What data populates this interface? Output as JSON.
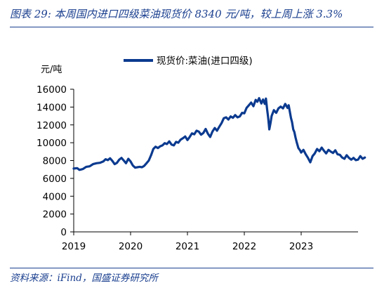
{
  "figure": {
    "title": "图表 29: 本周国内进口四级菜油现货价 8340 元/吨，较上周上涨 3.3%",
    "source": "资料来源：iFind，国盛证券研究所"
  },
  "chart_data": {
    "type": "line",
    "title": "",
    "ylabel": "元/吨",
    "xlabel": "",
    "ylim": [
      0,
      16000
    ],
    "yticks": [
      0,
      2000,
      4000,
      6000,
      8000,
      10000,
      12000,
      14000,
      16000
    ],
    "xlim": [
      2019.0,
      2024.0
    ],
    "xticks": [
      "2019",
      "2020",
      "2021",
      "2022",
      "2023"
    ],
    "legend_position": "top-center",
    "grid": false,
    "colors": {
      "line": "#0b3a8f",
      "axis": "#000000",
      "title": "#1a3f8f"
    },
    "series": [
      {
        "name": "现货价:菜油(进口四级)",
        "points": [
          [
            2019.0,
            7100
          ],
          [
            2019.06,
            7150
          ],
          [
            2019.1,
            6950
          ],
          [
            2019.16,
            7050
          ],
          [
            2019.22,
            7300
          ],
          [
            2019.28,
            7350
          ],
          [
            2019.34,
            7600
          ],
          [
            2019.4,
            7700
          ],
          [
            2019.46,
            7750
          ],
          [
            2019.52,
            7900
          ],
          [
            2019.56,
            8150
          ],
          [
            2019.6,
            8050
          ],
          [
            2019.64,
            8250
          ],
          [
            2019.68,
            7950
          ],
          [
            2019.72,
            7600
          ],
          [
            2019.76,
            7750
          ],
          [
            2019.8,
            8100
          ],
          [
            2019.84,
            8300
          ],
          [
            2019.88,
            8000
          ],
          [
            2019.92,
            7700
          ],
          [
            2019.96,
            8200
          ],
          [
            2020.0,
            7900
          ],
          [
            2020.04,
            7450
          ],
          [
            2020.08,
            7200
          ],
          [
            2020.12,
            7250
          ],
          [
            2020.16,
            7300
          ],
          [
            2020.2,
            7250
          ],
          [
            2020.24,
            7400
          ],
          [
            2020.28,
            7700
          ],
          [
            2020.32,
            8000
          ],
          [
            2020.36,
            8600
          ],
          [
            2020.4,
            9300
          ],
          [
            2020.44,
            9550
          ],
          [
            2020.48,
            9400
          ],
          [
            2020.52,
            9600
          ],
          [
            2020.56,
            9700
          ],
          [
            2020.6,
            9950
          ],
          [
            2020.64,
            9850
          ],
          [
            2020.68,
            10150
          ],
          [
            2020.72,
            9800
          ],
          [
            2020.76,
            9700
          ],
          [
            2020.8,
            10100
          ],
          [
            2020.84,
            10000
          ],
          [
            2020.88,
            10350
          ],
          [
            2020.92,
            10500
          ],
          [
            2020.96,
            10700
          ],
          [
            2021.0,
            10300
          ],
          [
            2021.04,
            10650
          ],
          [
            2021.08,
            11050
          ],
          [
            2021.12,
            10950
          ],
          [
            2021.16,
            11350
          ],
          [
            2021.2,
            11250
          ],
          [
            2021.24,
            10900
          ],
          [
            2021.28,
            11100
          ],
          [
            2021.32,
            11550
          ],
          [
            2021.36,
            11000
          ],
          [
            2021.4,
            10650
          ],
          [
            2021.44,
            11250
          ],
          [
            2021.48,
            11650
          ],
          [
            2021.52,
            11350
          ],
          [
            2021.56,
            11800
          ],
          [
            2021.6,
            12200
          ],
          [
            2021.64,
            12750
          ],
          [
            2021.68,
            12850
          ],
          [
            2021.72,
            12600
          ],
          [
            2021.76,
            12950
          ],
          [
            2021.8,
            12800
          ],
          [
            2021.84,
            13100
          ],
          [
            2021.88,
            12850
          ],
          [
            2021.92,
            12950
          ],
          [
            2021.96,
            13350
          ],
          [
            2022.0,
            13300
          ],
          [
            2022.04,
            13900
          ],
          [
            2022.08,
            14200
          ],
          [
            2022.12,
            14500
          ],
          [
            2022.16,
            14100
          ],
          [
            2022.2,
            14800
          ],
          [
            2022.23,
            14600
          ],
          [
            2022.26,
            15000
          ],
          [
            2022.3,
            14400
          ],
          [
            2022.33,
            14850
          ],
          [
            2022.36,
            14350
          ],
          [
            2022.38,
            14950
          ],
          [
            2022.4,
            13800
          ],
          [
            2022.42,
            12800
          ],
          [
            2022.44,
            11500
          ],
          [
            2022.46,
            12200
          ],
          [
            2022.48,
            13000
          ],
          [
            2022.52,
            13650
          ],
          [
            2022.56,
            13350
          ],
          [
            2022.6,
            13850
          ],
          [
            2022.64,
            14050
          ],
          [
            2022.68,
            13850
          ],
          [
            2022.72,
            14350
          ],
          [
            2022.76,
            13900
          ],
          [
            2022.78,
            14200
          ],
          [
            2022.8,
            13500
          ],
          [
            2022.82,
            12800
          ],
          [
            2022.84,
            12300
          ],
          [
            2022.86,
            11500
          ],
          [
            2022.88,
            11200
          ],
          [
            2022.9,
            10600
          ],
          [
            2022.92,
            10100
          ],
          [
            2022.95,
            9400
          ],
          [
            2022.98,
            9150
          ],
          [
            2023.0,
            8900
          ],
          [
            2023.04,
            9200
          ],
          [
            2023.08,
            8700
          ],
          [
            2023.12,
            8300
          ],
          [
            2023.16,
            7800
          ],
          [
            2023.2,
            8500
          ],
          [
            2023.24,
            8800
          ],
          [
            2023.28,
            9300
          ],
          [
            2023.32,
            9050
          ],
          [
            2023.36,
            9450
          ],
          [
            2023.4,
            9100
          ],
          [
            2023.44,
            8800
          ],
          [
            2023.48,
            9200
          ],
          [
            2023.52,
            9000
          ],
          [
            2023.56,
            8850
          ],
          [
            2023.6,
            9150
          ],
          [
            2023.64,
            8700
          ],
          [
            2023.68,
            8650
          ],
          [
            2023.72,
            8350
          ],
          [
            2023.76,
            8200
          ],
          [
            2023.8,
            8600
          ],
          [
            2023.84,
            8300
          ],
          [
            2023.88,
            8100
          ],
          [
            2023.92,
            8300
          ],
          [
            2023.96,
            8050
          ],
          [
            2024.0,
            8100
          ],
          [
            2024.04,
            8500
          ],
          [
            2024.08,
            8200
          ],
          [
            2024.12,
            8340
          ]
        ]
      }
    ]
  }
}
